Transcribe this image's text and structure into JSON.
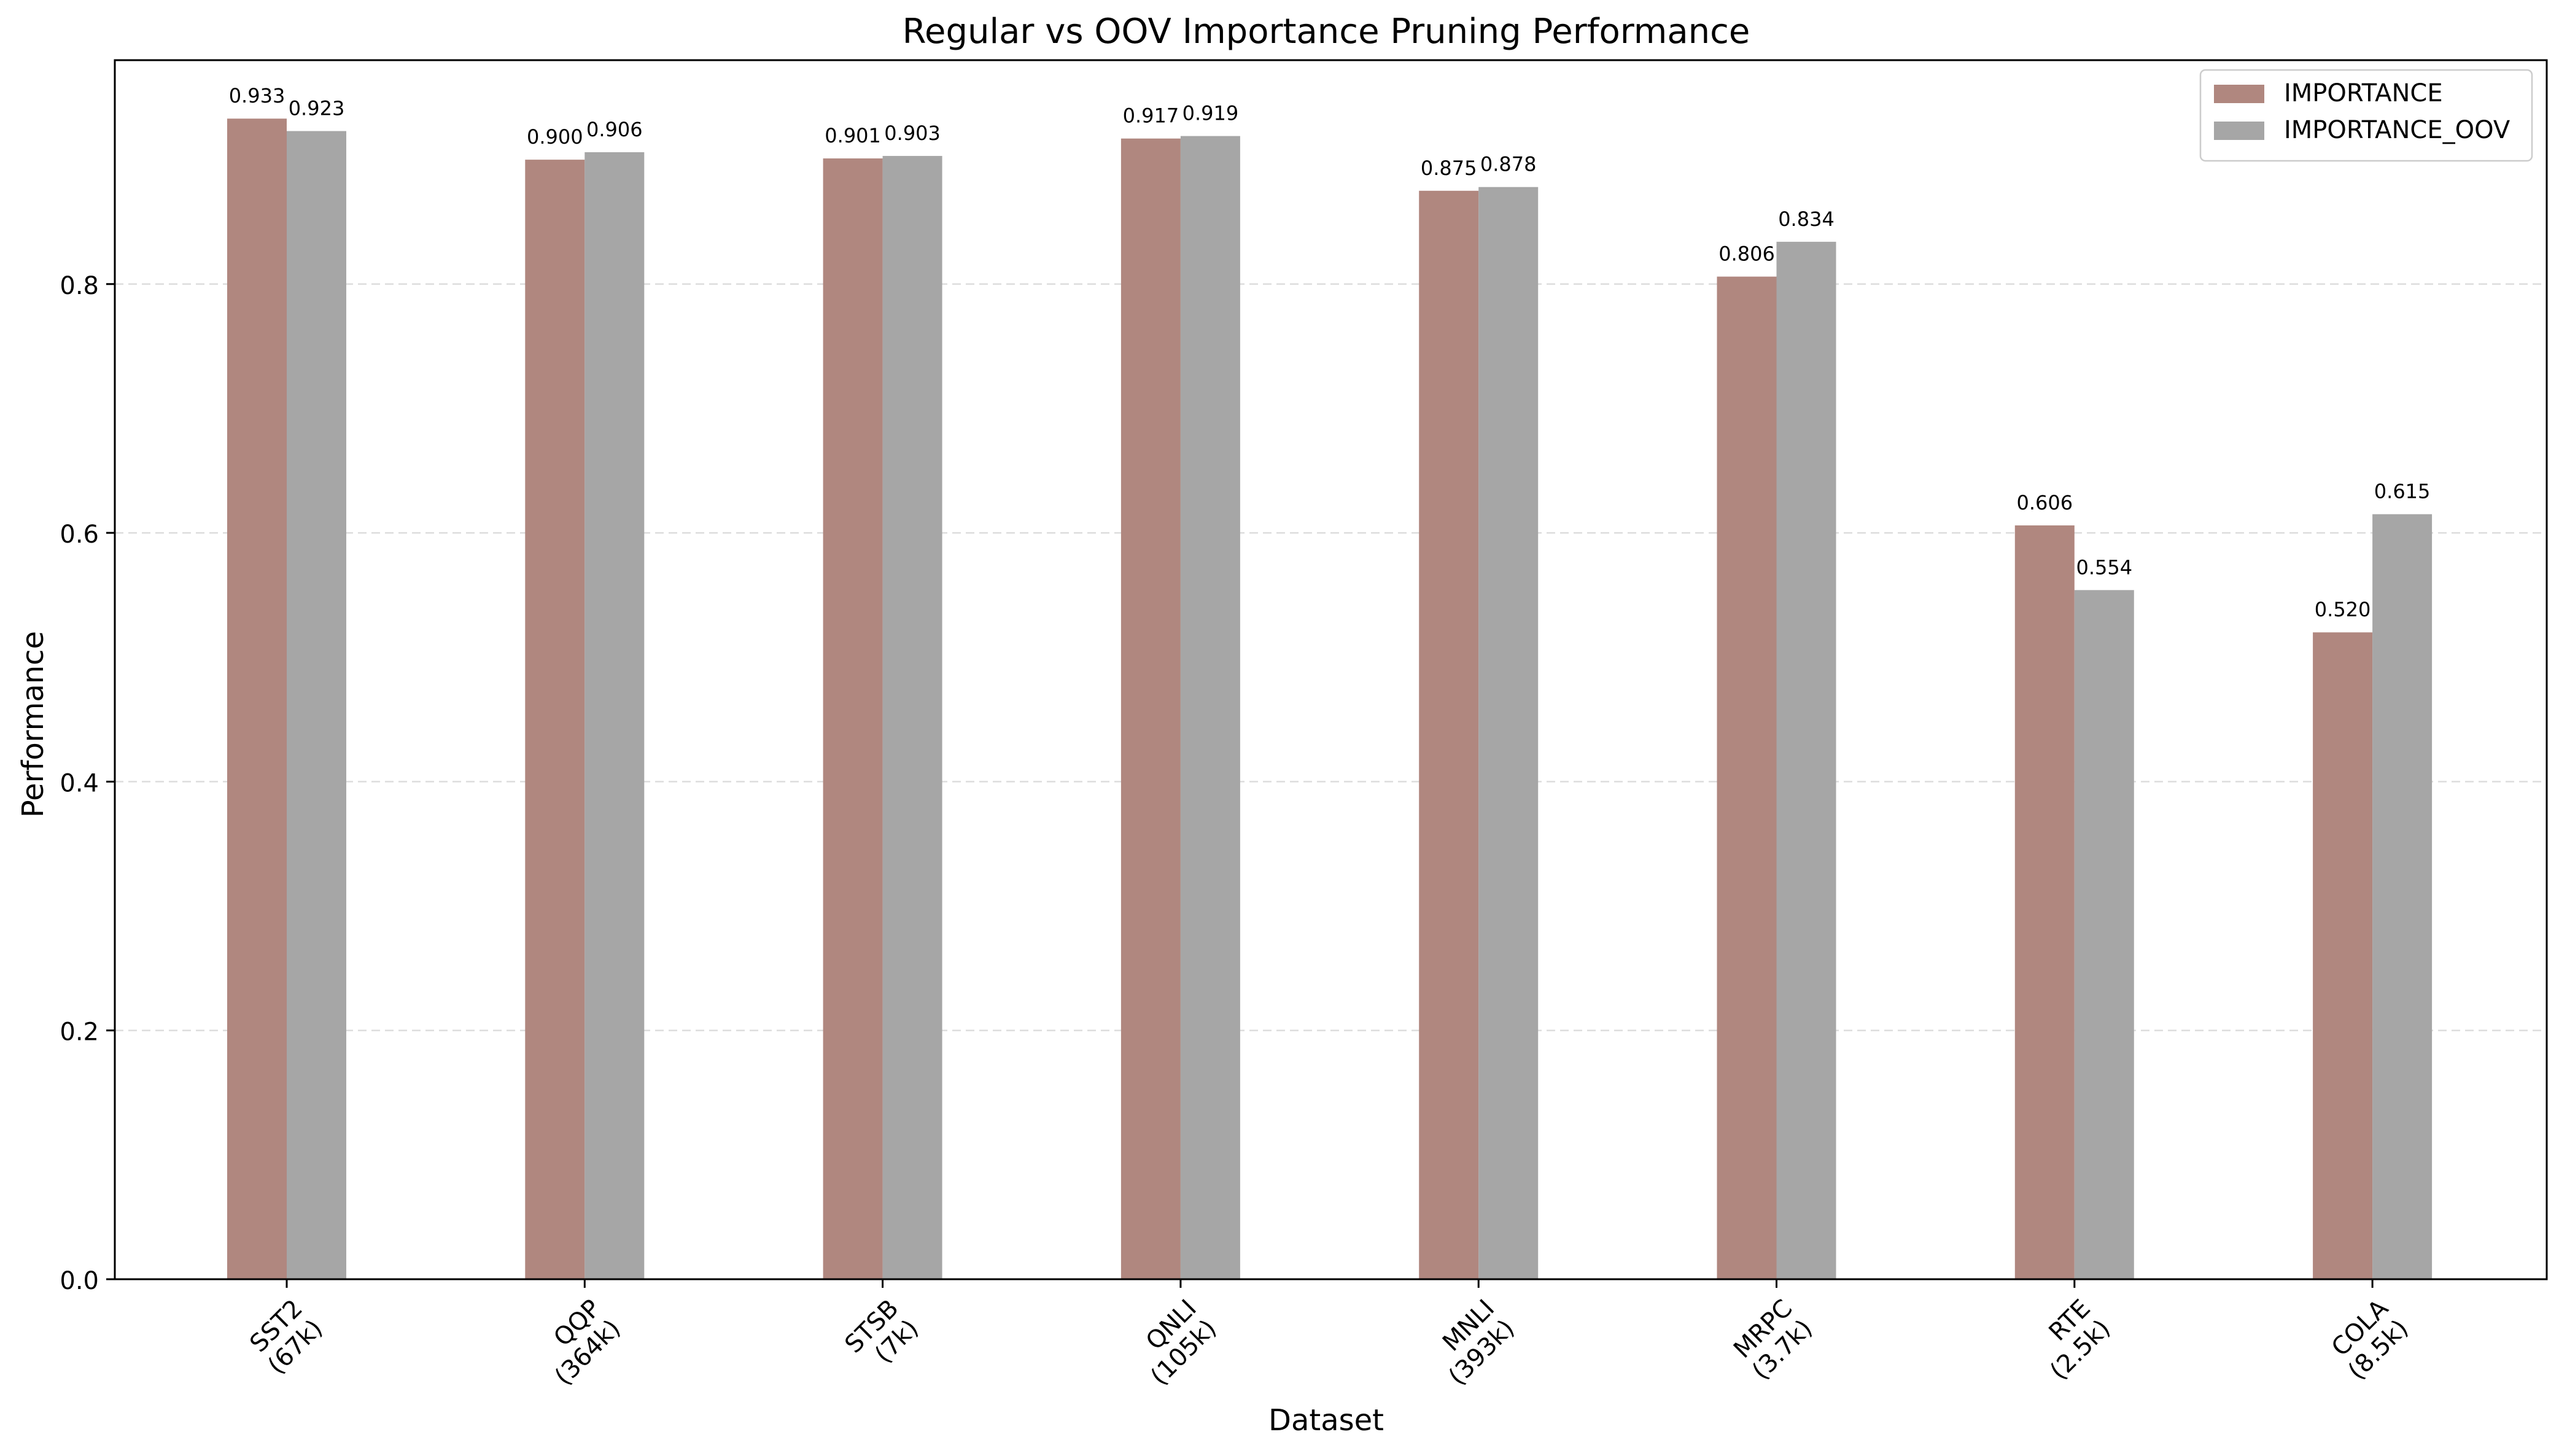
{
  "chart_data": {
    "type": "bar",
    "title": "Regular vs OOV Importance Pruning Performance",
    "xlabel": "Dataset",
    "ylabel": "Performance",
    "categories": [
      [
        "SST2",
        "(67k)"
      ],
      [
        "QQP",
        "(364k)"
      ],
      [
        "STSB",
        "(7k)"
      ],
      [
        "QNLI",
        "(105k)"
      ],
      [
        "MNLI",
        "(393k)"
      ],
      [
        "MRPC",
        "(3.7k)"
      ],
      [
        "RTE",
        "(2.5k)"
      ],
      [
        "COLA",
        "(8.5k)"
      ]
    ],
    "series": [
      {
        "name": "IMPORTANCE",
        "color": "#b0877f",
        "values": [
          0.933,
          0.9,
          0.901,
          0.917,
          0.875,
          0.806,
          0.606,
          0.52
        ],
        "labels": [
          "0.933",
          "0.900",
          "0.901",
          "0.917",
          "0.875",
          "0.806",
          "0.606",
          "0.520"
        ]
      },
      {
        "name": "IMPORTANCE_OOV",
        "color": "#a6a6a6",
        "values": [
          0.923,
          0.906,
          0.903,
          0.919,
          0.878,
          0.834,
          0.554,
          0.615
        ],
        "labels": [
          "0.923",
          "0.906",
          "0.903",
          "0.919",
          "0.878",
          "0.834",
          "0.554",
          "0.615"
        ]
      }
    ],
    "ylim": [
      0,
      0.98
    ],
    "yticks": [
      0.0,
      0.2,
      0.4,
      0.6,
      0.8
    ],
    "ytick_labels": [
      "0.0",
      "0.2",
      "0.4",
      "0.6",
      "0.8"
    ],
    "grid": "y-dashed",
    "legend_position": "top-right"
  }
}
